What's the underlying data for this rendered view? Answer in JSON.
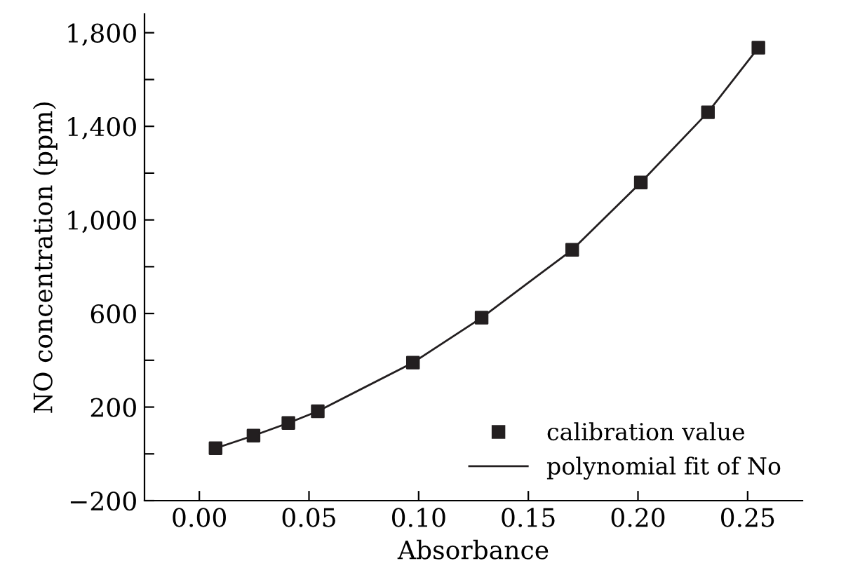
{
  "chart_data": {
    "type": "scatter",
    "xlabel": "Absorbance",
    "ylabel": "NO concentration (ppm)",
    "x": [
      0.0074,
      0.0247,
      0.0406,
      0.054,
      0.0974,
      0.1287,
      0.17,
      0.2013,
      0.2319,
      0.2549
    ],
    "series": [
      {
        "name": "calibration value",
        "color": "#231f20",
        "marker": "square",
        "values": [
          24,
          78,
          132,
          182,
          390,
          582,
          872,
          1160,
          1460,
          1736
        ]
      },
      {
        "name": "polynomial fit of No",
        "type": "line",
        "color": "#231f20",
        "marker": "none",
        "line_style": "solid",
        "values": [
          24,
          78,
          132,
          182,
          390,
          582,
          872,
          1160,
          1460,
          1736
        ]
      }
    ],
    "xlim": [
      -0.025,
      0.275
    ],
    "ylim": [
      -200,
      1880
    ],
    "xticks": [
      {
        "value": 0,
        "label": "0.00"
      },
      0.05,
      {
        "value": 0.1,
        "label": "0.10"
      },
      0.15,
      {
        "value": 0.2,
        "label": "0.20"
      },
      0.25
    ],
    "yticks": [
      {
        "value": -200,
        "label": "−200"
      },
      {
        "value": 0,
        "label": null
      },
      200,
      {
        "value": 400,
        "label": null
      },
      600,
      {
        "value": 800,
        "label": null
      },
      {
        "value": 1000,
        "label": "1,000"
      },
      {
        "value": 1200,
        "label": null
      },
      {
        "value": 1400,
        "label": "1,400"
      },
      {
        "value": 1600,
        "label": null
      },
      {
        "value": 1800,
        "label": "1,800"
      }
    ],
    "grid": false,
    "legend": "bottom right"
  }
}
